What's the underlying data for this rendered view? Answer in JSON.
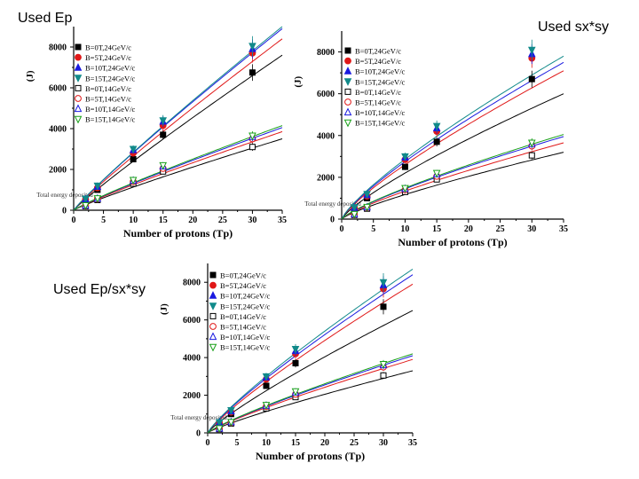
{
  "captions": {
    "top_left": "Used Ep",
    "top_right": "Used sx*sy",
    "bottom": "Used Ep/sx*sy"
  },
  "chart_data": [
    {
      "type": "scatter",
      "name": "Used Ep",
      "xlabel": "Number of protons (Tp)",
      "ylabel": "(J)",
      "ylabel_rotated_text": "Total energy deposited",
      "xlim": [
        0,
        35
      ],
      "ylim": [
        0,
        9000
      ],
      "xticks": [
        "0",
        "5",
        "10",
        "15",
        "20",
        "25",
        "30",
        "35"
      ],
      "yticks": [
        "0",
        "2000",
        "4000",
        "6000",
        "8000"
      ],
      "x": [
        2,
        4,
        10,
        15,
        30
      ],
      "series": [
        {
          "name": "B=0T,24GeV/c",
          "color": "#000000",
          "marker": "square-filled",
          "values": [
            500,
            1000,
            2500,
            3700,
            6750
          ],
          "fit_end": 7600
        },
        {
          "name": "B=5T,24GeV/c",
          "color": "#e01818",
          "marker": "circle-filled",
          "values": [
            520,
            1100,
            2800,
            4150,
            7700
          ],
          "fit_end": 8400
        },
        {
          "name": "B=10T,24GeV/c",
          "color": "#1a1ae0",
          "marker": "triangle-filled",
          "values": [
            540,
            1150,
            2950,
            4350,
            7900
          ],
          "fit_end": 8900
        },
        {
          "name": "B=15T,24GeV/c",
          "color": "#118a8a",
          "marker": "triangle-down-filled",
          "values": [
            560,
            1200,
            3000,
            4400,
            8050
          ],
          "fit_end": 9000
        },
        {
          "name": "B=0T,14GeV/c",
          "color": "#000000",
          "marker": "square-open",
          "values": [
            200,
            500,
            1300,
            1900,
            3100
          ],
          "fit_end": 3500
        },
        {
          "name": "B=5T,14GeV/c",
          "color": "#e01818",
          "marker": "circle-open",
          "values": [
            220,
            550,
            1400,
            2050,
            3500
          ],
          "fit_end": 3850
        },
        {
          "name": "B=10T,14GeV/c",
          "color": "#1a1ae0",
          "marker": "triangle-open",
          "values": [
            230,
            570,
            1450,
            2150,
            3600
          ],
          "fit_end": 4050
        },
        {
          "name": "B=15T,14GeV/c",
          "color": "#18a018",
          "marker": "triangle-down-open",
          "values": [
            240,
            580,
            1480,
            2200,
            3650
          ],
          "fit_end": 4150
        }
      ]
    },
    {
      "type": "scatter",
      "name": "Used sx*sy",
      "xlabel": "Number of protons (Tp)",
      "ylabel": "(J)",
      "ylabel_rotated_text": "Total energy deposited",
      "xlim": [
        0,
        35
      ],
      "ylim": [
        0,
        9000
      ],
      "xticks": [
        "0",
        "5",
        "10",
        "15",
        "20",
        "25",
        "30",
        "35"
      ],
      "yticks": [
        "0",
        "2000",
        "4000",
        "6000",
        "8000"
      ],
      "x": [
        2,
        4,
        10,
        15,
        30
      ],
      "series": [
        {
          "name": "B=0T,24GeV/c",
          "color": "#000000",
          "marker": "square-filled",
          "values": [
            500,
            1000,
            2500,
            3700,
            6700
          ],
          "fit_end": 6000
        },
        {
          "name": "B=5T,24GeV/c",
          "color": "#e01818",
          "marker": "circle-filled",
          "values": [
            520,
            1100,
            2850,
            4200,
            7700
          ],
          "fit_end": 7100
        },
        {
          "name": "B=10T,24GeV/c",
          "color": "#1a1ae0",
          "marker": "triangle-filled",
          "values": [
            540,
            1150,
            2950,
            4350,
            7900
          ],
          "fit_end": 7500
        },
        {
          "name": "B=15T,24GeV/c",
          "color": "#118a8a",
          "marker": "triangle-down-filled",
          "values": [
            560,
            1200,
            3000,
            4450,
            8100
          ],
          "fit_end": 7800
        },
        {
          "name": "B=0T,14GeV/c",
          "color": "#000000",
          "marker": "square-open",
          "values": [
            200,
            500,
            1300,
            1900,
            3050
          ],
          "fit_end": 3200
        },
        {
          "name": "B=5T,14GeV/c",
          "color": "#e01818",
          "marker": "circle-open",
          "values": [
            220,
            550,
            1400,
            2050,
            3500
          ],
          "fit_end": 3650
        },
        {
          "name": "B=10T,14GeV/c",
          "color": "#1a1ae0",
          "marker": "triangle-open",
          "values": [
            230,
            570,
            1450,
            2150,
            3600
          ],
          "fit_end": 3950
        },
        {
          "name": "B=15T,14GeV/c",
          "color": "#18a018",
          "marker": "triangle-down-open",
          "values": [
            240,
            580,
            1480,
            2200,
            3650
          ],
          "fit_end": 4050
        }
      ]
    },
    {
      "type": "scatter",
      "name": "Used Ep/sx*sy",
      "xlabel": "Number of protons (Tp)",
      "ylabel": "(J)",
      "ylabel_rotated_text": "Total energy deposited",
      "xlim": [
        0,
        35
      ],
      "ylim": [
        0,
        9000
      ],
      "xticks": [
        "0",
        "5",
        "10",
        "15",
        "20",
        "25",
        "30",
        "35"
      ],
      "yticks": [
        "0",
        "2000",
        "4000",
        "6000",
        "8000"
      ],
      "x": [
        2,
        4,
        10,
        15,
        30
      ],
      "series": [
        {
          "name": "B=0T,24GeV/c",
          "color": "#000000",
          "marker": "square-filled",
          "values": [
            500,
            1000,
            2500,
            3700,
            6700
          ],
          "fit_end": 6500
        },
        {
          "name": "B=5T,24GeV/c",
          "color": "#e01818",
          "marker": "circle-filled",
          "values": [
            520,
            1100,
            2850,
            4200,
            7650
          ],
          "fit_end": 7900
        },
        {
          "name": "B=10T,24GeV/c",
          "color": "#1a1ae0",
          "marker": "triangle-filled",
          "values": [
            540,
            1150,
            2950,
            4350,
            7850
          ],
          "fit_end": 8400
        },
        {
          "name": "B=15T,24GeV/c",
          "color": "#118a8a",
          "marker": "triangle-down-filled",
          "values": [
            560,
            1200,
            3000,
            4450,
            8000
          ],
          "fit_end": 8700
        },
        {
          "name": "B=0T,14GeV/c",
          "color": "#000000",
          "marker": "square-open",
          "values": [
            200,
            500,
            1300,
            1900,
            3050
          ],
          "fit_end": 3300
        },
        {
          "name": "B=5T,14GeV/c",
          "color": "#e01818",
          "marker": "circle-open",
          "values": [
            220,
            550,
            1400,
            2050,
            3500
          ],
          "fit_end": 3900
        },
        {
          "name": "B=10T,14GeV/c",
          "color": "#1a1ae0",
          "marker": "triangle-open",
          "values": [
            230,
            570,
            1450,
            2150,
            3600
          ],
          "fit_end": 4100
        },
        {
          "name": "B=15T,14GeV/c",
          "color": "#18a018",
          "marker": "triangle-down-open",
          "values": [
            240,
            580,
            1480,
            2200,
            3650
          ],
          "fit_end": 4200
        }
      ]
    }
  ]
}
